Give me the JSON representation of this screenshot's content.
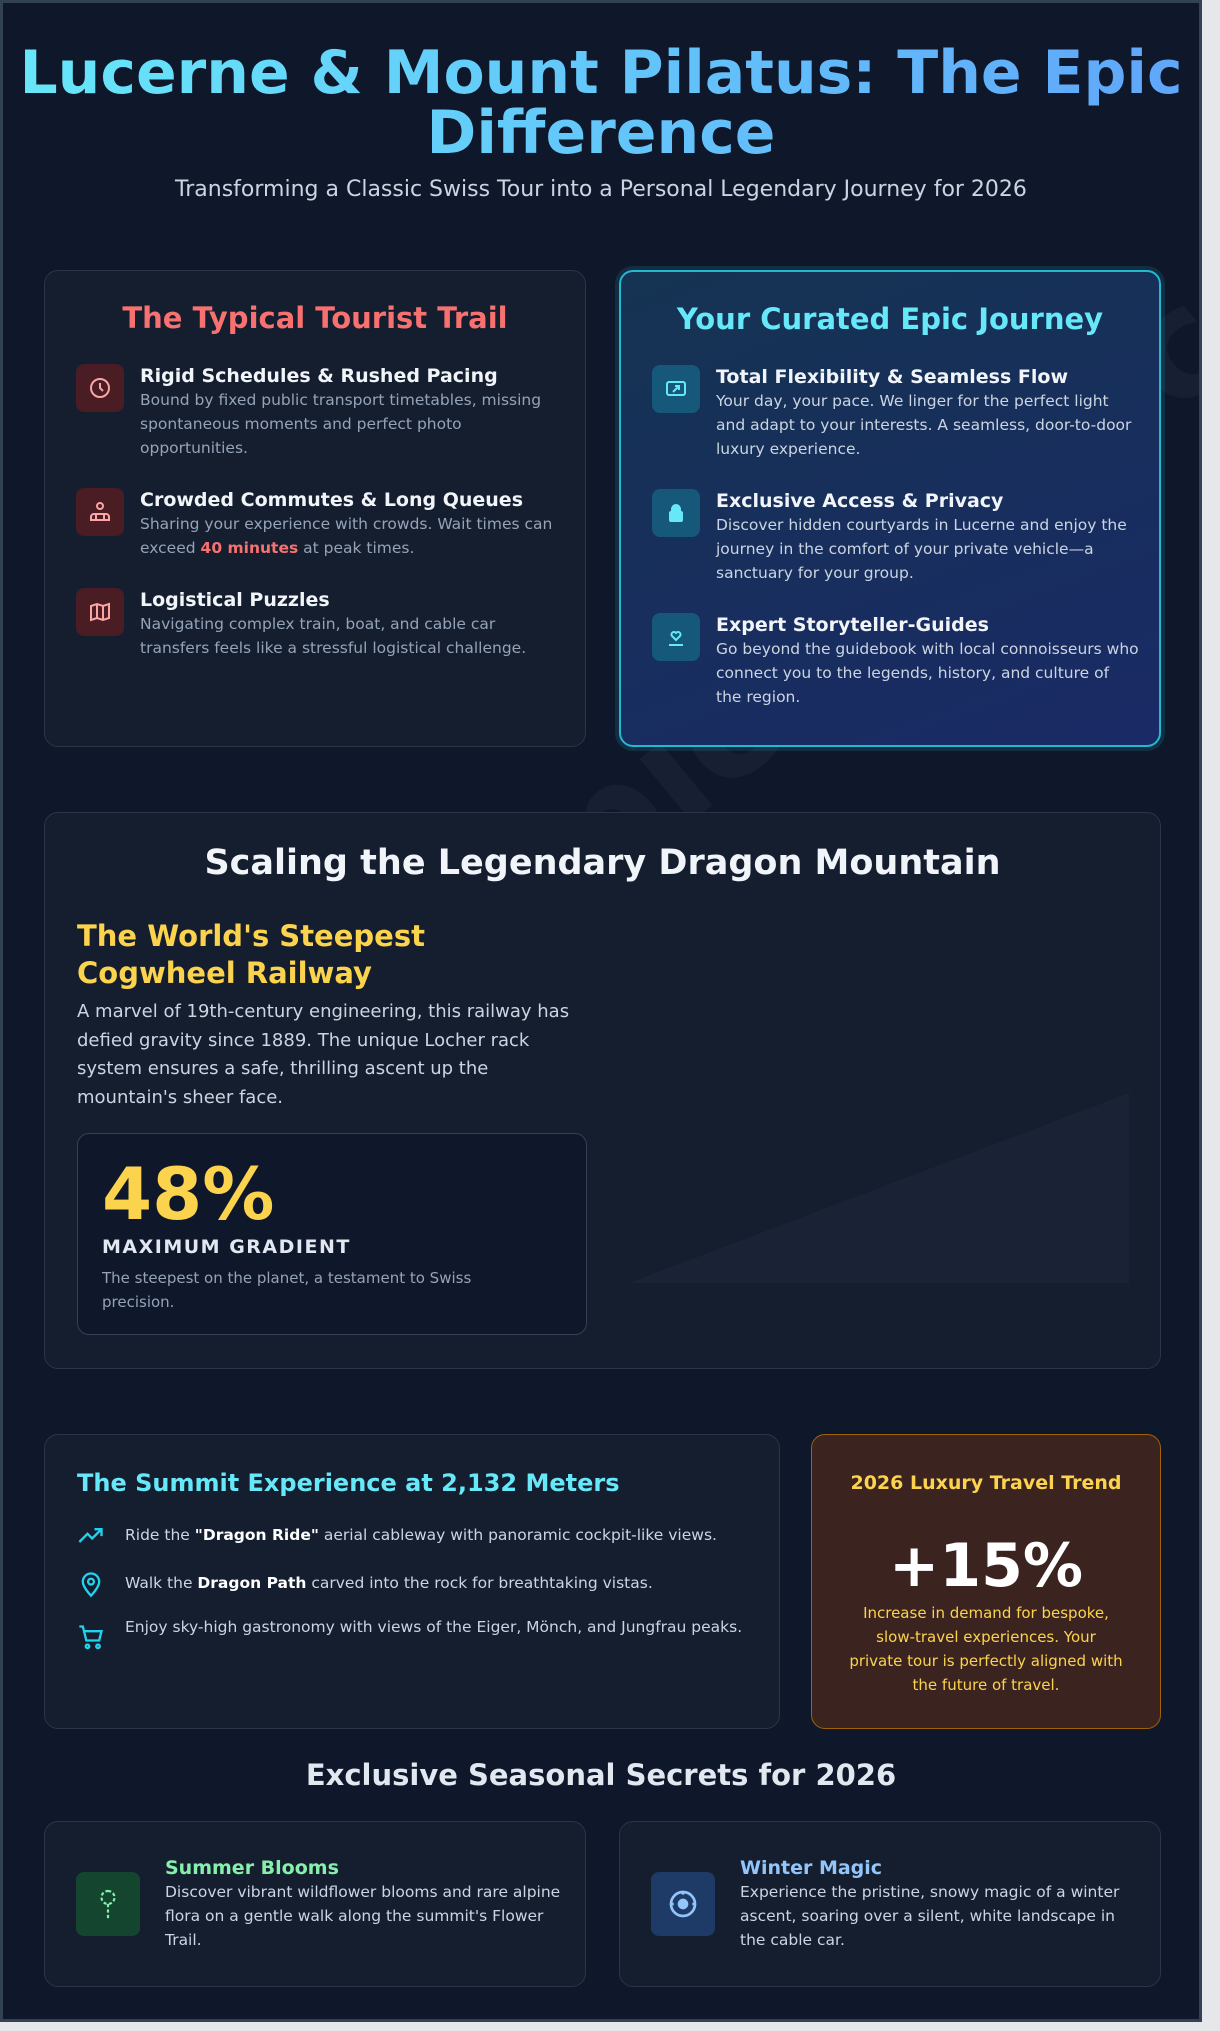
{
  "header": {
    "title": "Lucerne & Mount Pilatus: The Epic Difference",
    "subtitle": "Transforming a Classic Swiss Tour into a Personal Legendary Journey for 2026"
  },
  "typical": {
    "title": "The Typical Tourist Trail",
    "items": [
      {
        "icon": "clock-icon",
        "title": "Rigid Schedules & Rushed Pacing",
        "desc": "Bound by fixed public transport timetables, missing spontaneous moments and perfect photo opportunities."
      },
      {
        "icon": "crowd-icon",
        "title": "Crowded Commutes & Long Queues",
        "desc_pre": "Sharing your experience with crowds. Wait times can exceed ",
        "desc_hl": "40 minutes",
        "desc_post": " at peak times."
      },
      {
        "icon": "map-icon",
        "title": "Logistical Puzzles",
        "desc": "Navigating complex train, boat, and cable car transfers feels like a stressful logistical challenge."
      }
    ]
  },
  "epic": {
    "title": "Your Curated Epic Journey",
    "items": [
      {
        "icon": "flexible-route-icon",
        "title": "Total Flexibility & Seamless Flow",
        "desc": "Your day, your pace. We linger for the perfect light and adapt to your interests. A seamless, door-to-door luxury experience."
      },
      {
        "icon": "lock-icon",
        "title": "Exclusive Access & Privacy",
        "desc": "Discover hidden courtyards in Lucerne and enjoy the journey in the comfort of your private vehicle—a sanctuary for your group."
      },
      {
        "icon": "heart-guide-icon",
        "title": "Expert Storyteller-Guides",
        "desc": "Go beyond the guidebook with local connoisseurs who connect you to the legends, history, and culture of the region."
      }
    ]
  },
  "dragon": {
    "title": "Scaling the Legendary Dragon Mountain",
    "subtitle": "The World's Steepest Cogwheel Railway",
    "para": "A marvel of 19th-century engineering, this railway has defied gravity since 1889. The unique Locher rack system ensures a safe, thrilling ascent up the mountain's sheer face.",
    "stat": {
      "value": "48%",
      "label": "MAXIMUM GRADIENT",
      "desc": "The steepest on the planet, a testament to Swiss precision."
    }
  },
  "summit": {
    "title": "The Summit Experience at 2,132 Meters",
    "items": [
      {
        "icon": "trending-up-icon",
        "pre": "Ride the ",
        "bold": "\"Dragon Ride\"",
        "post": " aerial cableway with panoramic cockpit-like views."
      },
      {
        "icon": "map-pin-icon",
        "pre": "Walk the ",
        "bold": "Dragon Path",
        "post": " carved into the rock for breathtaking vistas."
      },
      {
        "icon": "cart-icon",
        "pre": "Enjoy sky-high gastronomy with views of the Eiger, Mönch, and Jungfrau peaks.",
        "bold": "",
        "post": ""
      }
    ]
  },
  "trend": {
    "title": "2026 Luxury Travel Trend",
    "value": "+15%",
    "desc": "Increase in demand for bespoke, slow-travel experiences. Your private tour is perfectly aligned with the future of travel."
  },
  "seasonal": {
    "title": "Exclusive Seasonal Secrets for 2026",
    "items": [
      {
        "icon": "flower-icon",
        "title": "Summer Blooms",
        "desc": "Discover vibrant wildflower blooms and rare alpine flora on a gentle walk along the summit's Flower Trail.",
        "color": "#86efac"
      },
      {
        "icon": "snow-icon",
        "title": "Winter Magic",
        "desc": "Experience the pristine, snowy magic of a winter ascent, soaring over a silent, white landscape in the cable car.",
        "color": "#93c5fd"
      }
    ]
  },
  "watermark": "swissepictours.com",
  "colors": {
    "bg": "#0f172a",
    "accent_cyan": "#67e8f9",
    "red": "#f87171",
    "yellow": "#fcd34d",
    "trend_bg": "#3b2420"
  }
}
